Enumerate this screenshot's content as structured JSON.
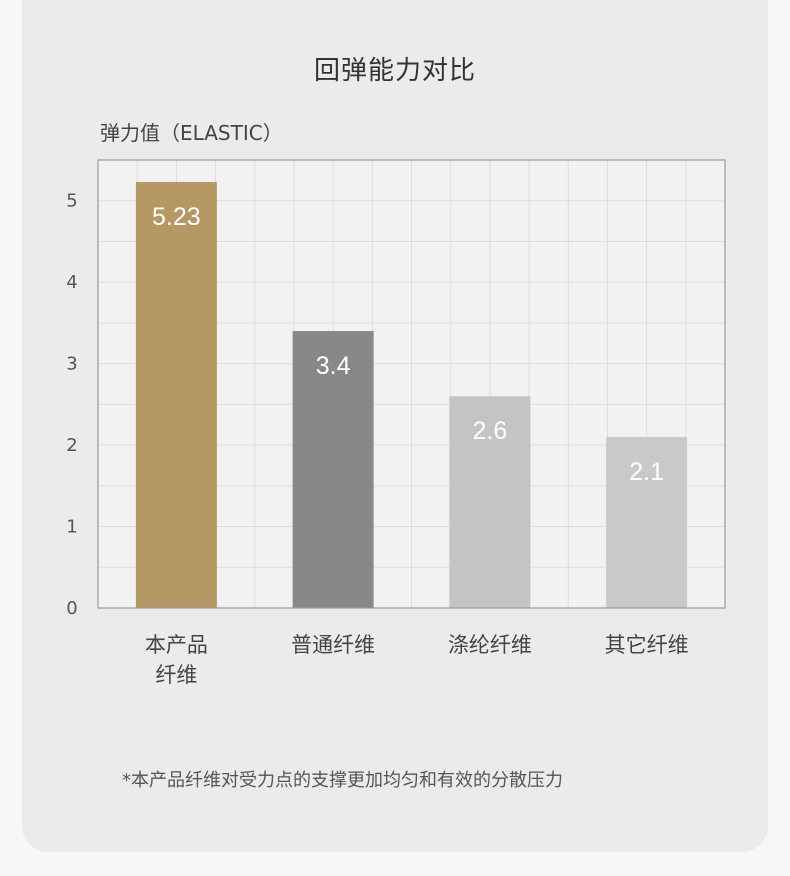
{
  "chart_data": {
    "type": "bar",
    "title": "回弹能力对比",
    "ylabel": "弹力值（ELASTIC）",
    "xlabel": "",
    "categories": [
      [
        "本产品",
        "纤维"
      ],
      [
        "普通纤维"
      ],
      [
        "涤纶纤维"
      ],
      [
        "其它纤维"
      ]
    ],
    "values": [
      5.23,
      3.4,
      2.6,
      2.1
    ],
    "value_labels": [
      "5.23",
      "3.4",
      "2.6",
      "2.1"
    ],
    "bar_colors": [
      "#b59863",
      "#888888",
      "#c4c4c4",
      "#c9c9c9"
    ],
    "ylim": [
      0,
      5.5
    ],
    "yticks": [
      0,
      1,
      2,
      3,
      4,
      5
    ],
    "grid": true,
    "legend": "none"
  },
  "footnote": "*本产品纤维对受力点的支撑更加均匀和有效的分散压力",
  "colors": {
    "background": "#ebebeb",
    "plot_background": "#f2f2f2",
    "grid": "#dddddd",
    "axis": "#999999"
  }
}
